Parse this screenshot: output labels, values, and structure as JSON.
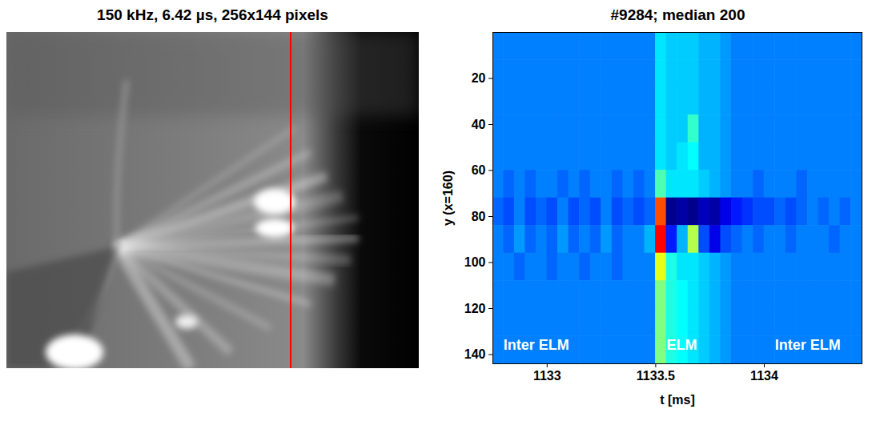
{
  "image_panel": {
    "title": "150 kHz, 6.42 µs, 256x144 pixels"
  },
  "chart_data": {
    "type": "heatmap",
    "title": "#9284; median 200",
    "x_label": "t [ms]",
    "y_label": "y (x=160)",
    "xlim": [
      1132.75,
      1134.45
    ],
    "xticks": [
      1133,
      1133.5,
      1134
    ],
    "ylim": [
      0,
      144
    ],
    "yticks": [
      20,
      40,
      60,
      80,
      100,
      120,
      140
    ],
    "x_bins": [
      1132.75,
      1132.8,
      1132.85,
      1132.9,
      1132.95,
      1133,
      1133.05,
      1133.1,
      1133.15,
      1133.2,
      1133.25,
      1133.3,
      1133.35,
      1133.4,
      1133.45,
      1133.5,
      1133.55,
      1133.6,
      1133.65,
      1133.7,
      1133.75,
      1133.8,
      1133.85,
      1133.9,
      1133.95,
      1134,
      1134.05,
      1134.1,
      1134.15,
      1134.2,
      1134.25,
      1134.3,
      1134.35,
      1134.4,
      1134.45
    ],
    "y_bins": [
      0,
      12,
      24,
      36,
      48,
      60,
      72,
      84,
      96,
      108,
      120,
      132,
      144
    ],
    "zlim": [
      -1,
      1
    ],
    "z": [
      [
        -0.5,
        -0.5,
        -0.5,
        -0.5,
        -0.5,
        -0.5,
        -0.5,
        -0.5,
        -0.5,
        -0.5,
        -0.5,
        -0.5,
        -0.5,
        -0.5,
        -0.5,
        -0.3,
        -0.35,
        -0.35,
        -0.35,
        -0.4,
        -0.4,
        -0.45,
        -0.5,
        -0.5,
        -0.5,
        -0.5,
        -0.5,
        -0.5,
        -0.5,
        -0.5,
        -0.5,
        -0.5,
        -0.5,
        -0.5
      ],
      [
        -0.5,
        -0.5,
        -0.5,
        -0.5,
        -0.5,
        -0.5,
        -0.5,
        -0.5,
        -0.5,
        -0.5,
        -0.5,
        -0.5,
        -0.5,
        -0.5,
        -0.5,
        -0.3,
        -0.35,
        -0.35,
        -0.35,
        -0.4,
        -0.4,
        -0.45,
        -0.5,
        -0.5,
        -0.5,
        -0.5,
        -0.5,
        -0.5,
        -0.5,
        -0.5,
        -0.5,
        -0.5,
        -0.5,
        -0.5
      ],
      [
        -0.5,
        -0.5,
        -0.5,
        -0.5,
        -0.5,
        -0.5,
        -0.5,
        -0.5,
        -0.5,
        -0.5,
        -0.5,
        -0.5,
        -0.5,
        -0.5,
        -0.5,
        -0.3,
        -0.35,
        -0.35,
        -0.35,
        -0.4,
        -0.4,
        -0.45,
        -0.5,
        -0.5,
        -0.5,
        -0.5,
        -0.5,
        -0.5,
        -0.5,
        -0.5,
        -0.5,
        -0.5,
        -0.5,
        -0.5
      ],
      [
        -0.5,
        -0.5,
        -0.5,
        -0.5,
        -0.5,
        -0.5,
        -0.5,
        -0.5,
        -0.5,
        -0.5,
        -0.5,
        -0.5,
        -0.5,
        -0.5,
        -0.5,
        -0.3,
        -0.35,
        -0.35,
        -0.15,
        -0.4,
        -0.4,
        -0.45,
        -0.5,
        -0.5,
        -0.5,
        -0.5,
        -0.5,
        -0.5,
        -0.5,
        -0.5,
        -0.5,
        -0.5,
        -0.5,
        -0.5
      ],
      [
        -0.5,
        -0.5,
        -0.5,
        -0.5,
        -0.5,
        -0.5,
        -0.5,
        -0.5,
        -0.5,
        -0.5,
        -0.5,
        -0.5,
        -0.5,
        -0.5,
        -0.5,
        -0.3,
        -0.35,
        -0.3,
        -0.25,
        -0.4,
        -0.4,
        -0.45,
        -0.5,
        -0.5,
        -0.5,
        -0.5,
        -0.5,
        -0.5,
        -0.5,
        -0.5,
        -0.5,
        -0.5,
        -0.5,
        -0.5
      ],
      [
        -0.5,
        -0.55,
        -0.5,
        -0.55,
        -0.5,
        -0.5,
        -0.55,
        -0.5,
        -0.55,
        -0.5,
        -0.5,
        -0.55,
        -0.5,
        -0.55,
        -0.5,
        -0.1,
        -0.3,
        -0.3,
        -0.3,
        -0.35,
        -0.4,
        -0.45,
        -0.5,
        -0.5,
        -0.55,
        -0.5,
        -0.5,
        -0.5,
        -0.55,
        -0.5,
        -0.5,
        -0.5,
        -0.5,
        -0.5
      ],
      [
        -0.55,
        -0.6,
        -0.5,
        -0.6,
        -0.55,
        -0.6,
        -0.5,
        -0.6,
        -0.55,
        -0.6,
        -0.5,
        -0.6,
        -0.55,
        -0.6,
        -0.55,
        0.6,
        -1,
        -0.95,
        -1,
        -0.9,
        -0.95,
        -0.8,
        -0.7,
        -0.65,
        -0.6,
        -0.6,
        -0.55,
        -0.6,
        -0.55,
        -0.5,
        -0.55,
        -0.5,
        -0.55,
        -0.5
      ],
      [
        -0.5,
        -0.55,
        -0.45,
        -0.55,
        -0.5,
        -0.55,
        -0.45,
        -0.55,
        -0.5,
        -0.55,
        -0.45,
        -0.55,
        -0.5,
        -0.5,
        -0.4,
        0.75,
        -0.7,
        -0.4,
        0.1,
        -0.6,
        -0.8,
        -0.6,
        -0.55,
        -0.5,
        -0.55,
        -0.5,
        -0.5,
        -0.55,
        -0.5,
        -0.5,
        -0.5,
        -0.55,
        -0.5,
        -0.5
      ],
      [
        -0.5,
        -0.5,
        -0.55,
        -0.5,
        -0.5,
        -0.55,
        -0.5,
        -0.5,
        -0.55,
        -0.5,
        -0.5,
        -0.55,
        -0.5,
        -0.5,
        -0.5,
        0.2,
        -0.2,
        -0.3,
        -0.3,
        -0.35,
        -0.4,
        -0.45,
        -0.5,
        -0.5,
        -0.5,
        -0.5,
        -0.5,
        -0.5,
        -0.5,
        -0.5,
        -0.5,
        -0.5,
        -0.5,
        -0.5
      ],
      [
        -0.5,
        -0.5,
        -0.5,
        -0.5,
        -0.5,
        -0.5,
        -0.5,
        -0.5,
        -0.5,
        -0.5,
        -0.5,
        -0.5,
        -0.5,
        -0.5,
        -0.5,
        0.0,
        -0.2,
        -0.25,
        -0.3,
        -0.35,
        -0.4,
        -0.45,
        -0.5,
        -0.5,
        -0.5,
        -0.5,
        -0.5,
        -0.5,
        -0.5,
        -0.5,
        -0.5,
        -0.5,
        -0.5,
        -0.5
      ],
      [
        -0.5,
        -0.5,
        -0.5,
        -0.5,
        -0.5,
        -0.5,
        -0.5,
        -0.5,
        -0.5,
        -0.5,
        -0.5,
        -0.5,
        -0.5,
        -0.5,
        -0.5,
        0.0,
        -0.2,
        -0.25,
        -0.3,
        -0.35,
        -0.4,
        -0.45,
        -0.5,
        -0.5,
        -0.5,
        -0.5,
        -0.5,
        -0.5,
        -0.5,
        -0.5,
        -0.5,
        -0.5,
        -0.5,
        -0.5
      ],
      [
        -0.5,
        -0.5,
        -0.5,
        -0.5,
        -0.5,
        -0.5,
        -0.5,
        -0.5,
        -0.5,
        -0.5,
        -0.5,
        -0.5,
        -0.5,
        -0.5,
        -0.5,
        0.0,
        -0.2,
        -0.25,
        -0.3,
        -0.35,
        -0.4,
        -0.45,
        -0.5,
        -0.5,
        -0.5,
        -0.5,
        -0.5,
        -0.5,
        -0.5,
        -0.5,
        -0.5,
        -0.5,
        -0.5,
        -0.5
      ]
    ],
    "annotations": [
      {
        "text": "Inter ELM",
        "x": 1132.95,
        "y": 136
      },
      {
        "text": "ELM",
        "x": 1133.62,
        "y": 136
      },
      {
        "text": "Inter ELM",
        "x": 1134.2,
        "y": 136
      }
    ]
  }
}
